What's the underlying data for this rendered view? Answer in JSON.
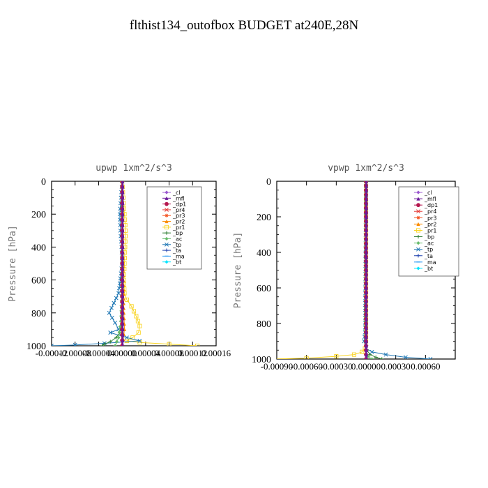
{
  "title": "flthist134_outofbox  BUDGET at240E,28N",
  "legend_entries": [
    {
      "label": "_cl",
      "color": "#9b59d0",
      "marker": "diamond"
    },
    {
      "label": "_mfl",
      "color": "#6a1b9a",
      "marker": "triangle"
    },
    {
      "label": "_dp1",
      "color": "#b5174f",
      "marker": "circle"
    },
    {
      "label": "_pr4",
      "color": "#e53935",
      "marker": "x"
    },
    {
      "label": "_pr3",
      "color": "#f4511e",
      "marker": "star"
    },
    {
      "label": "_pr2",
      "color": "#fb8c00",
      "marker": "triangle"
    },
    {
      "label": "_pr1",
      "color": "#f9d423",
      "marker": "square"
    },
    {
      "label": "_bp",
      "color": "#2e7d32",
      "marker": "plus"
    },
    {
      "label": "_ac",
      "color": "#66bb6a",
      "marker": "diamond"
    },
    {
      "label": "_tp",
      "color": "#1f77b4",
      "marker": "x"
    },
    {
      "label": "_ta",
      "color": "#1e40af",
      "marker": "plus"
    },
    {
      "label": "_ma",
      "color": "#2196f3",
      "marker": "dash"
    },
    {
      "label": "_bt",
      "color": "#00e5ff",
      "marker": "diamond"
    }
  ],
  "chart_data": [
    {
      "type": "line",
      "title": "upwp   1xm^2/s^3",
      "ylabel": "Pressure [hPa]",
      "xlabel": "",
      "xlim": [
        -0.00012,
        0.00016
      ],
      "ylim": [
        1000,
        0
      ],
      "y_ticks": [
        0,
        200,
        400,
        600,
        800,
        1000
      ],
      "x_ticks": [
        "-0.00012",
        "-0.00008",
        "-0.00004",
        "0.00000",
        "0.00004",
        "0.00008",
        "0.00012",
        "0.00016"
      ],
      "legend_position": "top-right",
      "series": [
        {
          "name": "_cl",
          "x": [
            0,
            0,
            0,
            0,
            0,
            0,
            0,
            0,
            0,
            0,
            0
          ],
          "y": [
            0,
            100,
            200,
            300,
            400,
            500,
            600,
            700,
            800,
            900,
            1000
          ]
        },
        {
          "name": "_mfl",
          "x": [
            1e-06,
            1e-06,
            1e-06,
            1e-06,
            1e-06,
            1e-06,
            1e-06,
            1e-06,
            1e-06,
            1e-06,
            1e-06
          ],
          "y": [
            0,
            100,
            200,
            300,
            400,
            500,
            600,
            700,
            800,
            900,
            1000
          ]
        },
        {
          "name": "_dp1",
          "x": [
            0,
            0,
            0,
            0,
            0,
            0,
            0,
            0,
            0,
            0,
            0
          ],
          "y": [
            0,
            100,
            200,
            300,
            400,
            500,
            600,
            700,
            800,
            900,
            1000
          ]
        },
        {
          "name": "_pr1",
          "x": [
            0,
            2e-06,
            4e-06,
            6e-06,
            5e-06,
            4e-06,
            3e-06,
            4e-06,
            8e-06,
            1.6e-05,
            2.4e-05,
            3e-05,
            2.8e-05,
            1.8e-05,
            8e-06,
            3e-05,
            8e-05,
            0.000128
          ],
          "y": [
            0,
            100,
            200,
            300,
            400,
            500,
            600,
            680,
            720,
            760,
            820,
            880,
            920,
            950,
            970,
            980,
            990,
            1000
          ]
        },
        {
          "name": "_pr2",
          "x": [
            0,
            0,
            1e-06,
            2e-06,
            3e-06,
            4e-06,
            2e-06,
            0
          ],
          "y": [
            0,
            200,
            400,
            600,
            800,
            900,
            960,
            1000
          ]
        },
        {
          "name": "_tp",
          "x": [
            0,
            -2e-06,
            -4e-06,
            -3e-06,
            -1e-06,
            0,
            -6e-06,
            -1.4e-05,
            -2.2e-05,
            -1.2e-05,
            -6e-06,
            -2e-05,
            8e-06,
            3e-05,
            -3e-05,
            -8e-05,
            -0.00012
          ],
          "y": [
            0,
            100,
            200,
            300,
            400,
            500,
            680,
            740,
            800,
            860,
            900,
            920,
            950,
            970,
            985,
            995,
            1000
          ]
        },
        {
          "name": "_bp",
          "x": [
            0,
            0,
            0,
            -2e-06,
            -4e-06,
            -1e-05,
            -2e-05,
            -3e-05,
            -3.4e-05
          ],
          "y": [
            0,
            400,
            800,
            880,
            920,
            950,
            975,
            990,
            1000
          ]
        },
        {
          "name": "_ac",
          "x": [
            0,
            0,
            -2e-06,
            -6e-06,
            -1.2e-05
          ],
          "y": [
            0,
            600,
            850,
            950,
            1000
          ]
        }
      ]
    },
    {
      "type": "line",
      "title": "vpwp   1xm^2/s^3",
      "ylabel": "Pressure [hPa]",
      "xlabel": "",
      "xlim": [
        -0.0009,
        0.0009
      ],
      "ylim": [
        1000,
        0
      ],
      "y_ticks": [
        0,
        200,
        400,
        600,
        800,
        1000
      ],
      "x_ticks": [
        "-0.00090",
        "-0.00060",
        "-0.00030",
        "0.00000",
        "0.00030",
        "0.00060"
      ],
      "legend_position": "top-right",
      "series": [
        {
          "name": "_cl",
          "x": [
            0,
            0,
            0,
            0,
            0,
            0,
            0,
            0,
            0,
            0,
            0
          ],
          "y": [
            0,
            100,
            200,
            300,
            400,
            500,
            600,
            700,
            800,
            900,
            1000
          ]
        },
        {
          "name": "_mfl",
          "x": [
            4e-06,
            4e-06,
            4e-06,
            4e-06,
            4e-06,
            4e-06,
            4e-06,
            4e-06,
            4e-06,
            4e-06,
            4e-06
          ],
          "y": [
            0,
            100,
            200,
            300,
            400,
            500,
            600,
            700,
            800,
            900,
            1000
          ]
        },
        {
          "name": "_dp1",
          "x": [
            0,
            0,
            0,
            0,
            0,
            0,
            0,
            0,
            0,
            0,
            0
          ],
          "y": [
            0,
            100,
            200,
            300,
            400,
            500,
            600,
            700,
            800,
            900,
            1000
          ]
        },
        {
          "name": "_pr1",
          "x": [
            0,
            0,
            0,
            0,
            -1e-05,
            -4e-05,
            -0.00012,
            -0.0003,
            -0.0006,
            -0.00095
          ],
          "y": [
            0,
            400,
            800,
            900,
            940,
            960,
            975,
            985,
            995,
            1000
          ]
        },
        {
          "name": "_tp",
          "x": [
            0,
            -1e-05,
            -2e-05,
            0,
            6e-05,
            0.0002,
            0.0004,
            0.00065
          ],
          "y": [
            0,
            850,
            900,
            940,
            960,
            975,
            990,
            1000
          ]
        },
        {
          "name": "_bp",
          "x": [
            0,
            0,
            1e-05,
            4e-05,
            0.0001,
            0.00016
          ],
          "y": [
            0,
            900,
            950,
            975,
            990,
            1000
          ]
        },
        {
          "name": "_ac",
          "x": [
            0,
            0,
            2e-05,
            6e-05
          ],
          "y": [
            0,
            950,
            985,
            1000
          ]
        }
      ]
    }
  ]
}
